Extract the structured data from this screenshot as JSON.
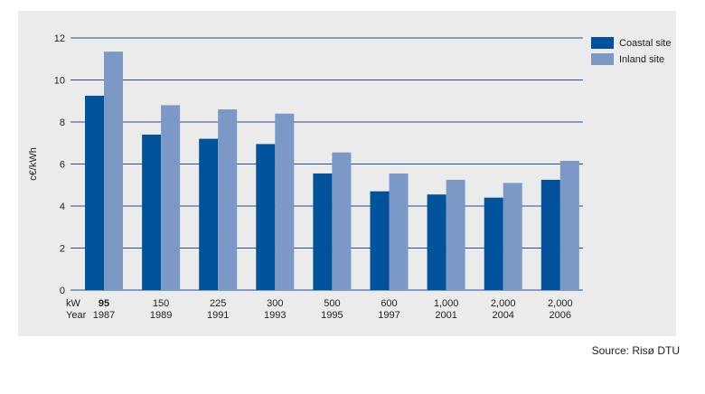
{
  "chart_data": {
    "type": "bar",
    "ylabel": "c€/kWh",
    "ylim": [
      0,
      12
    ],
    "yticks": [
      0,
      2,
      4,
      6,
      8,
      10,
      12
    ],
    "grid": true,
    "legend_position": "top-right",
    "row_labels": [
      "kW",
      "Year"
    ],
    "categories": [
      {
        "kw": "95",
        "year": "1987"
      },
      {
        "kw": "150",
        "year": "1989"
      },
      {
        "kw": "225",
        "year": "1991"
      },
      {
        "kw": "300",
        "year": "1993"
      },
      {
        "kw": "500",
        "year": "1995"
      },
      {
        "kw": "600",
        "year": "1997"
      },
      {
        "kw": "1,000",
        "year": "2001"
      },
      {
        "kw": "2,000",
        "year": "2004"
      },
      {
        "kw": "2,000",
        "year": "2006"
      }
    ],
    "series": [
      {
        "name": "Coastal site",
        "color": "#00529b",
        "values": [
          9.25,
          7.4,
          7.2,
          6.95,
          5.55,
          4.7,
          4.55,
          4.4,
          5.25
        ]
      },
      {
        "name": "Inland site",
        "color": "#7b98c6",
        "values": [
          11.35,
          8.8,
          8.6,
          8.4,
          6.55,
          5.55,
          5.25,
          5.1,
          6.15
        ]
      }
    ]
  },
  "source": "Source: Risø DTU"
}
